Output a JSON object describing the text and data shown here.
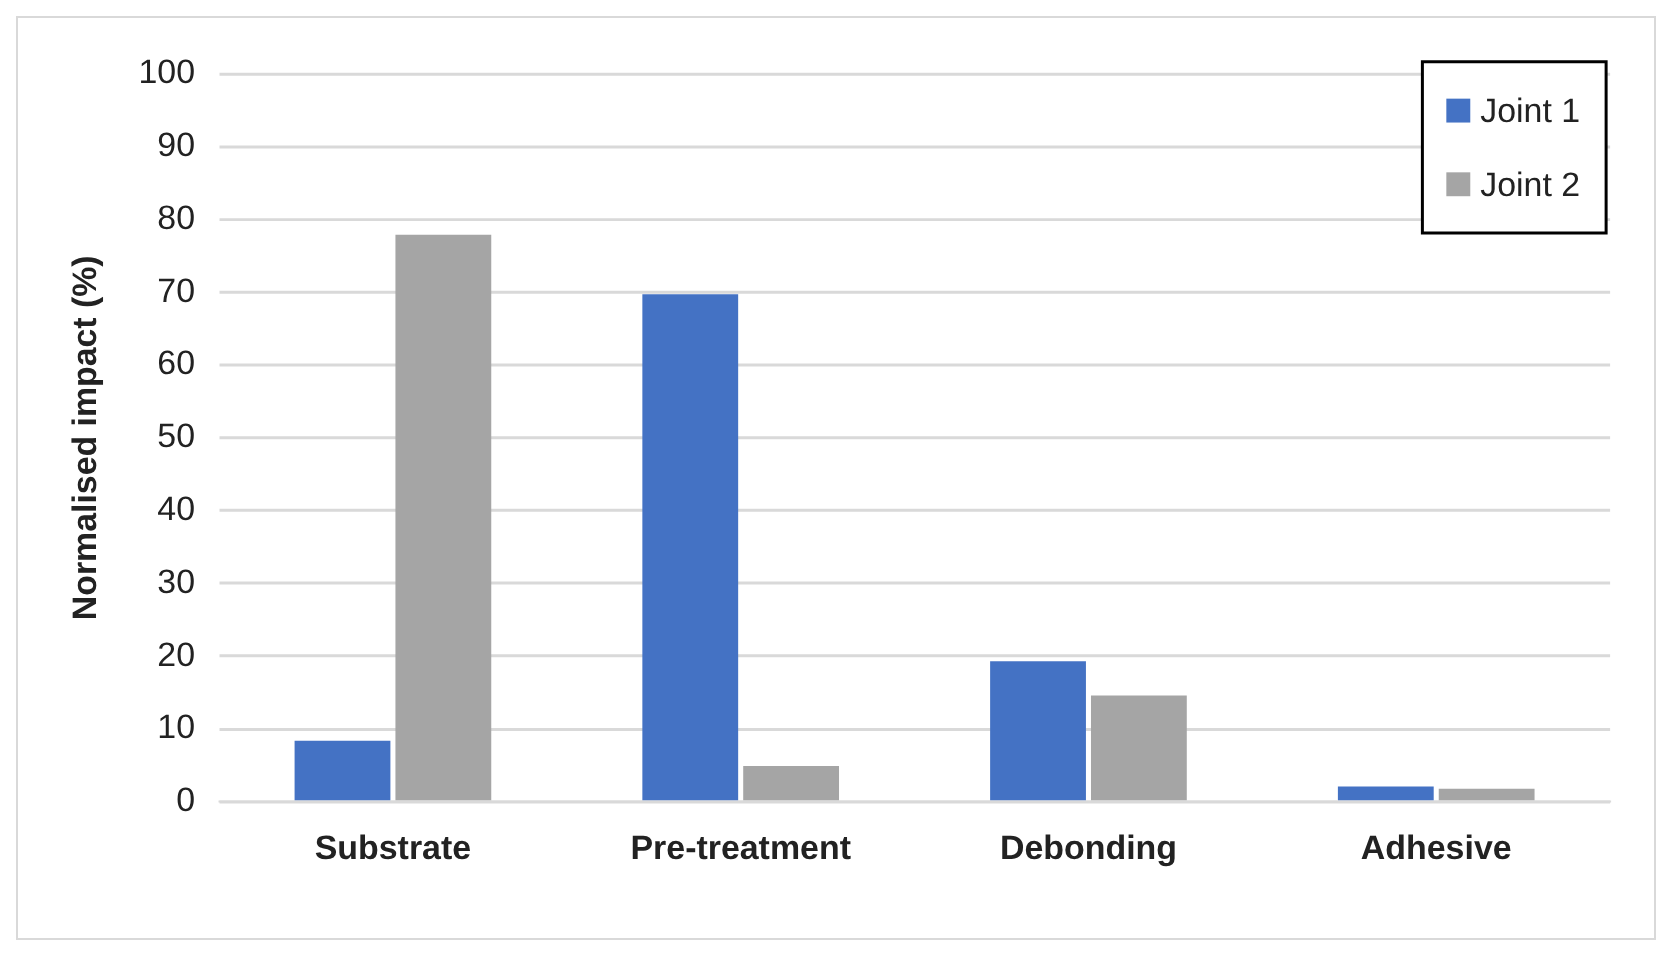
{
  "chart_data": {
    "type": "bar",
    "ylabel": "Normalised impact (%)",
    "categories": [
      "Substrate",
      "Pre-treatment",
      "Debonding",
      "Adhesive"
    ],
    "series": [
      {
        "name": "Joint 1",
        "color": "#4472c4",
        "values": [
          8.4,
          69.7,
          19.3,
          2.1
        ]
      },
      {
        "name": "Joint 2",
        "color": "#a5a5a5",
        "values": [
          77.9,
          4.9,
          14.6,
          1.8
        ]
      }
    ],
    "ylim": [
      0,
      100
    ],
    "yticks": [
      0,
      10,
      20,
      30,
      40,
      50,
      60,
      70,
      80,
      90,
      100
    ],
    "grid": "y",
    "legend": "top right"
  }
}
